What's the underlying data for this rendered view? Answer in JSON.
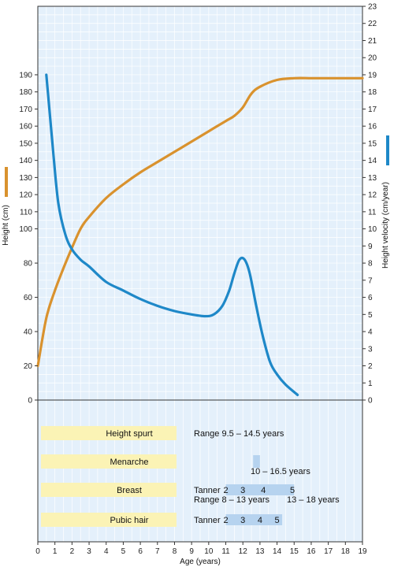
{
  "chart_data": {
    "type": "line",
    "xlabel": "Age (years)",
    "ylabel_left": "Height (cm)",
    "ylabel_right": "Height velocity (cm/year)",
    "x_ticks": [
      0,
      1,
      2,
      3,
      4,
      5,
      6,
      7,
      8,
      9,
      10,
      11,
      12,
      13,
      14,
      15,
      16,
      17,
      18,
      19
    ],
    "y_left_ticks": [
      0,
      20,
      40,
      60,
      80,
      100,
      110,
      120,
      130,
      140,
      150,
      160,
      170,
      180,
      190
    ],
    "y_right_ticks": [
      0,
      1,
      2,
      3,
      4,
      5,
      6,
      7,
      8,
      9,
      10,
      11,
      12,
      13,
      14,
      15,
      16,
      17,
      18,
      19,
      20,
      21,
      22,
      23
    ],
    "xlim": [
      0,
      19
    ],
    "ylim_right": [
      0,
      23
    ],
    "grid": true,
    "colors": {
      "height": "#d9922e",
      "velocity": "#1e88c8",
      "bar": "#fbf3b5",
      "range": "#b6d3ef",
      "plot_bg": "#e4f0fb"
    },
    "series": [
      {
        "key": "height",
        "x": [
          0,
          0.5,
          1,
          1.5,
          2,
          2.5,
          3,
          4,
          5,
          6,
          7,
          8,
          9,
          10,
          11,
          11.5,
          12,
          12.5,
          13,
          14,
          15,
          16,
          17,
          18,
          19
        ],
        "y": [
          20,
          48,
          64,
          77,
          89,
          100,
          107,
          118,
          126,
          133,
          139,
          145,
          151,
          157,
          163,
          166,
          171,
          179,
          183,
          187,
          188,
          188,
          188,
          188,
          188
        ]
      },
      {
        "key": "velocity",
        "x": [
          0.5,
          0.9,
          1.2,
          1.6,
          2,
          2.5,
          3,
          4,
          5,
          6,
          7,
          8,
          9,
          9.8,
          10.3,
          10.8,
          11.2,
          11.5,
          11.8,
          12.1,
          12.4,
          12.8,
          13.2,
          13.6,
          14,
          14.5,
          15.2
        ],
        "y": [
          19,
          14.5,
          11.5,
          9.7,
          8.8,
          8.2,
          7.8,
          6.9,
          6.4,
          5.9,
          5.5,
          5.2,
          5.0,
          4.9,
          5.0,
          5.5,
          6.4,
          7.4,
          8.2,
          8.2,
          7.4,
          5.4,
          3.6,
          2.2,
          1.5,
          0.9,
          0.3
        ]
      }
    ]
  },
  "events": [
    {
      "name": "Height spurt",
      "line1": "Range  9.5 – 14.5 years",
      "line2": "",
      "stages": [],
      "range": []
    },
    {
      "name": "Menarche",
      "line1": "",
      "line2": "10 – 16.5 years",
      "stages": [],
      "range": [
        12.6,
        13.0
      ]
    },
    {
      "name": "Breast",
      "line1": "Tanner",
      "line2": "Range 8 – 13 years",
      "line3": "13 – 18 years",
      "stages": [
        "2",
        "3",
        "4",
        "5"
      ],
      "stage_x": [
        11.0,
        12.0,
        13.2,
        14.9
      ],
      "range": [
        11.0,
        15.0
      ]
    },
    {
      "name": "Pubic hair",
      "line1": "Tanner",
      "line2": "",
      "stages": [
        "2",
        "3",
        "4",
        "5"
      ],
      "stage_x": [
        11.0,
        12.0,
        13.0,
        14.0
      ],
      "range": [
        11.0,
        14.3
      ]
    }
  ]
}
